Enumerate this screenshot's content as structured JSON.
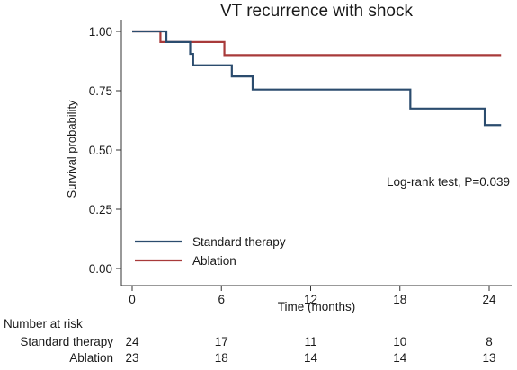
{
  "chart_data": {
    "type": "line",
    "step": true,
    "title": "VT recurrence with shock",
    "xlabel": "Time (months)",
    "ylabel": "Survival probability",
    "xlim": [
      -0.3,
      25
    ],
    "ylim": [
      0,
      1
    ],
    "xticks": [
      "0",
      "6",
      "12",
      "18",
      "24"
    ],
    "yticks": [
      "0.00",
      "0.25",
      "0.50",
      "0.75",
      "1.00"
    ],
    "annotation": "Log-rank test, P=0.039",
    "legend_position": "bottom-left",
    "grid": false,
    "series": [
      {
        "name": "Standard therapy",
        "color": "#2b4c6e",
        "x": [
          0,
          2.3,
          3.9,
          4.1,
          6.7,
          8.1,
          18.7,
          23.7,
          24.8
        ],
        "y": [
          1.0,
          0.955,
          0.905,
          0.857,
          0.81,
          0.755,
          0.675,
          0.605,
          0.605
        ]
      },
      {
        "name": "Ablation",
        "color": "#a83a3a",
        "x": [
          0,
          1.9,
          6.2,
          24.8
        ],
        "y": [
          1.0,
          0.955,
          0.9,
          0.9
        ]
      }
    ],
    "risk_table": {
      "title": "Number at risk",
      "times": [
        0,
        6,
        12,
        18,
        24
      ],
      "rows": [
        {
          "label": "Standard therapy",
          "values": [
            "24",
            "17",
            "11",
            "10",
            "8"
          ]
        },
        {
          "label": "Ablation",
          "values": [
            "23",
            "18",
            "14",
            "14",
            "13"
          ]
        }
      ]
    }
  }
}
